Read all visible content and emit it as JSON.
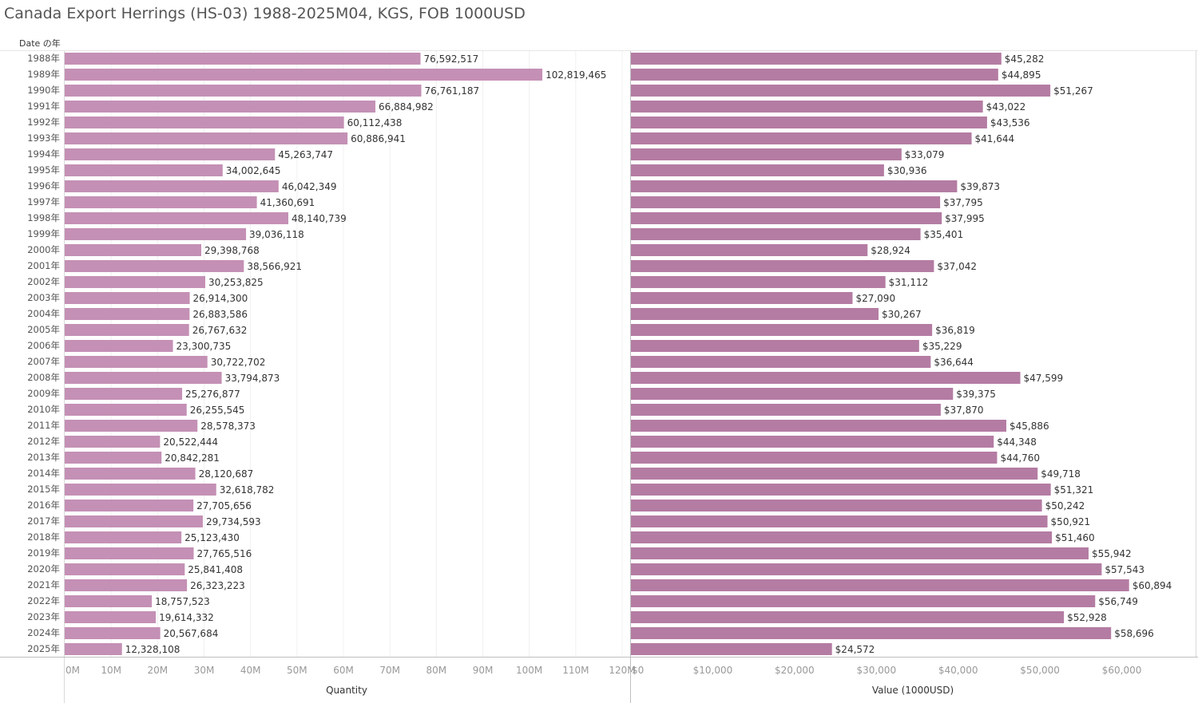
{
  "title": "Canada Export Herrings (HS-03) 1988-2025M04, KGS, FOB 1000USD",
  "chart_data": {
    "type": "bar",
    "orientation": "horizontal",
    "row_header": "Date の年",
    "categories": [
      "1988年",
      "1989年",
      "1990年",
      "1991年",
      "1992年",
      "1993年",
      "1994年",
      "1995年",
      "1996年",
      "1997年",
      "1998年",
      "1999年",
      "2000年",
      "2001年",
      "2002年",
      "2003年",
      "2004年",
      "2005年",
      "2006年",
      "2007年",
      "2008年",
      "2009年",
      "2010年",
      "2011年",
      "2012年",
      "2013年",
      "2014年",
      "2015年",
      "2016年",
      "2017年",
      "2018年",
      "2019年",
      "2020年",
      "2021年",
      "2022年",
      "2023年",
      "2024年",
      "2025年"
    ],
    "panels": [
      {
        "name": "Quantity",
        "xlabel": "Quantity",
        "color": "#c490b5",
        "xlim": [
          0,
          120000000
        ],
        "ticks": [
          0,
          10000000,
          20000000,
          30000000,
          40000000,
          50000000,
          60000000,
          70000000,
          80000000,
          90000000,
          100000000,
          110000000,
          120000000
        ],
        "tick_labels": [
          "0M",
          "10M",
          "20M",
          "30M",
          "40M",
          "50M",
          "60M",
          "70M",
          "80M",
          "90M",
          "100M",
          "110M",
          "120M"
        ],
        "gridlines": true,
        "values": [
          76592517,
          102819465,
          76761187,
          66884982,
          60112438,
          60886941,
          45263747,
          34002645,
          46042349,
          41360691,
          48140739,
          39036118,
          29398768,
          38566921,
          30253825,
          26914300,
          26883586,
          26767632,
          23300735,
          30722702,
          33794873,
          25276877,
          26255545,
          28578373,
          20522444,
          20842281,
          28120687,
          32618782,
          27705656,
          29734593,
          25123430,
          27765516,
          25841408,
          26323223,
          18757523,
          19614332,
          20567684,
          12328108
        ],
        "value_labels": [
          "76,592,517",
          "102,819,465",
          "76,761,187",
          "66,884,982",
          "60,112,438",
          "60,886,941",
          "45,263,747",
          "34,002,645",
          "46,042,349",
          "41,360,691",
          "48,140,739",
          "39,036,118",
          "29,398,768",
          "38,566,921",
          "30,253,825",
          "26,914,300",
          "26,883,586",
          "26,767,632",
          "23,300,735",
          "30,722,702",
          "33,794,873",
          "25,276,877",
          "26,255,545",
          "28,578,373",
          "20,522,444",
          "20,842,281",
          "28,120,687",
          "32,618,782",
          "27,705,656",
          "29,734,593",
          "25,123,430",
          "27,765,516",
          "25,841,408",
          "26,323,223",
          "18,757,523",
          "19,614,332",
          "20,567,684",
          "12,328,108"
        ]
      },
      {
        "name": "Value (1000USD)",
        "xlabel": "Value (1000USD)",
        "color": "#b47ca3",
        "xlim": [
          0,
          66000
        ],
        "ticks": [
          0,
          10000,
          20000,
          30000,
          40000,
          50000,
          60000
        ],
        "tick_labels": [
          "$0",
          "$10,000",
          "$20,000",
          "$30,000",
          "$40,000",
          "$50,000",
          "$60,000"
        ],
        "gridlines": false,
        "values": [
          45282,
          44895,
          51267,
          43022,
          43536,
          41644,
          33079,
          30936,
          39873,
          37795,
          37995,
          35401,
          28924,
          37042,
          31112,
          27090,
          30267,
          36819,
          35229,
          36644,
          47599,
          39375,
          37870,
          45886,
          44348,
          44760,
          49718,
          51321,
          50242,
          50921,
          51460,
          55942,
          57543,
          60894,
          56749,
          52928,
          58696,
          24572
        ],
        "value_labels": [
          "$45,282",
          "$44,895",
          "$51,267",
          "$43,022",
          "$43,536",
          "$41,644",
          "$33,079",
          "$30,936",
          "$39,873",
          "$37,795",
          "$37,995",
          "$35,401",
          "$28,924",
          "$37,042",
          "$31,112",
          "$27,090",
          "$30,267",
          "$36,819",
          "$35,229",
          "$36,644",
          "$47,599",
          "$39,375",
          "$37,870",
          "$45,886",
          "$44,348",
          "$44,760",
          "$49,718",
          "$51,321",
          "$50,242",
          "$50,921",
          "$51,460",
          "$55,942",
          "$57,543",
          "$60,894",
          "$56,749",
          "$52,928",
          "$58,696",
          "$24,572"
        ]
      }
    ]
  }
}
